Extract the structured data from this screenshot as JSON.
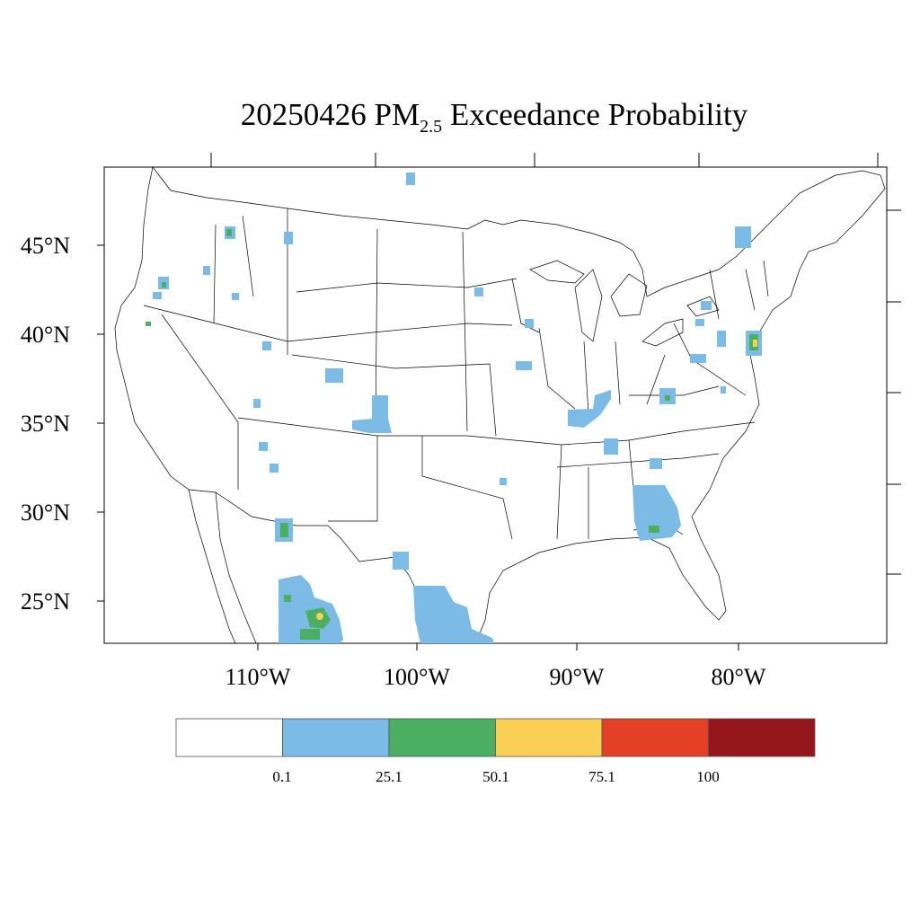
{
  "title": {
    "date": "20250426",
    "pm": "PM",
    "pm_sub": "2.5",
    "rest": "Exceedance Probability"
  },
  "map": {
    "lat_labels": [
      "45°N",
      "40°N",
      "35°N",
      "30°N",
      "25°N"
    ],
    "lon_labels": [
      "110°W",
      "100°W",
      "90°W",
      "80°W"
    ]
  },
  "colorbar": {
    "colors": [
      "#ffffff",
      "#7bbbe6",
      "#4aaf62",
      "#f9d054",
      "#e34026",
      "#95171b"
    ],
    "labels": [
      "0.1",
      "25.1",
      "50.1",
      "75.1",
      "100"
    ]
  },
  "regions": [
    {
      "name": "southwest-mexico",
      "level": "25.1-50.1"
    },
    {
      "name": "south-texas",
      "level": "0.1-25.1"
    },
    {
      "name": "north-florida-georgia",
      "level": "25.1-50.1"
    },
    {
      "name": "new-jersey-coast",
      "level": "50.1-75.1"
    }
  ]
}
